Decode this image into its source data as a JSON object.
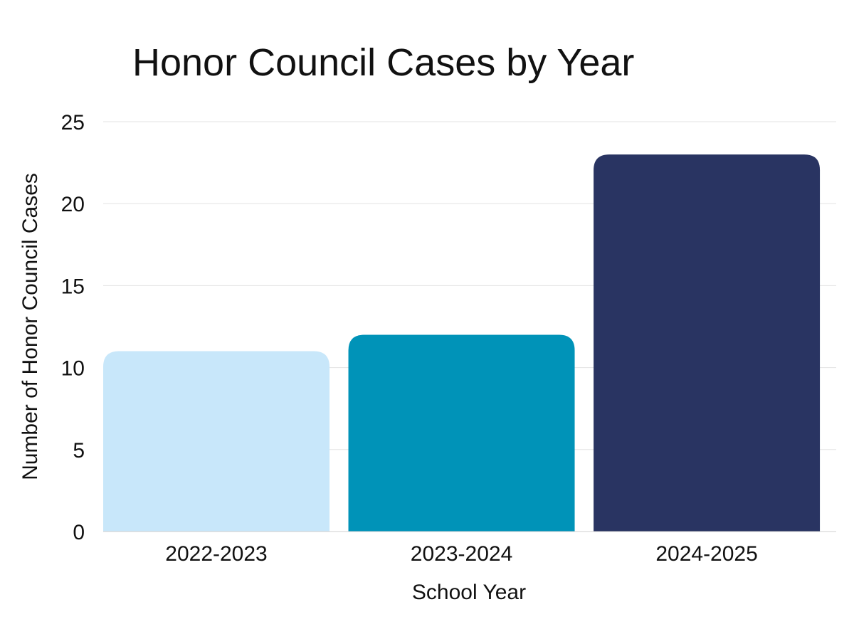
{
  "chart_data": {
    "type": "bar",
    "title": "Honor Council Cases by Year",
    "xlabel": "School Year",
    "ylabel": "Number of Honor Council Cases",
    "categories": [
      "2022-2023",
      "2023-2024",
      "2024-2025"
    ],
    "values": [
      11,
      12,
      23
    ],
    "colors": [
      "#c8e7fa",
      "#0093b8",
      "#293462"
    ],
    "ylim": [
      0,
      25
    ],
    "yticks": [
      0,
      5,
      10,
      15,
      20,
      25
    ],
    "grid": true,
    "legend": "none"
  }
}
